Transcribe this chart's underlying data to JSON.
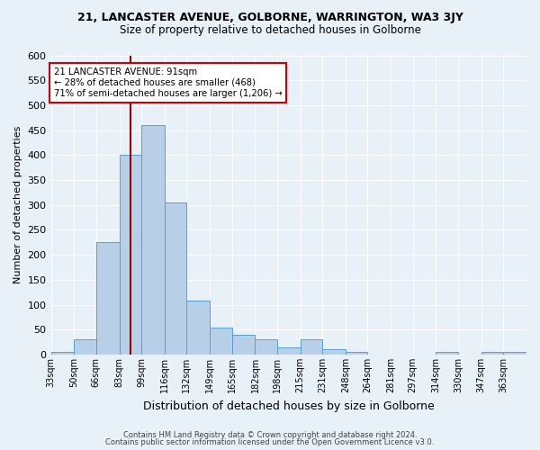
{
  "title1": "21, LANCASTER AVENUE, GOLBORNE, WARRINGTON, WA3 3JY",
  "title2": "Size of property relative to detached houses in Golborne",
  "xlabel": "Distribution of detached houses by size in Golborne",
  "ylabel": "Number of detached properties",
  "footer1": "Contains HM Land Registry data © Crown copyright and database right 2024.",
  "footer2": "Contains public sector information licensed under the Open Government Licence v3.0.",
  "bin_labels": [
    "33sqm",
    "50sqm",
    "66sqm",
    "83sqm",
    "99sqm",
    "116sqm",
    "132sqm",
    "149sqm",
    "165sqm",
    "182sqm",
    "198sqm",
    "215sqm",
    "231sqm",
    "248sqm",
    "264sqm",
    "281sqm",
    "297sqm",
    "314sqm",
    "330sqm",
    "347sqm",
    "363sqm"
  ],
  "bar_heights": [
    5,
    30,
    225,
    400,
    460,
    305,
    108,
    55,
    40,
    30,
    14,
    30,
    10,
    5,
    0,
    0,
    0,
    5,
    0,
    5,
    5
  ],
  "bar_color": "#b8cfe8",
  "bar_edge_color": "#5a9fd4",
  "property_line_x": 91,
  "bin_edges": [
    33,
    50,
    66,
    83,
    99,
    116,
    132,
    149,
    165,
    182,
    198,
    215,
    231,
    248,
    264,
    281,
    297,
    314,
    330,
    347,
    363,
    380
  ],
  "annotation_line1": "21 LANCASTER AVENUE: 91sqm",
  "annotation_line2": "← 28% of detached houses are smaller (468)",
  "annotation_line3": "71% of semi-detached houses are larger (1,206) →",
  "annotation_box_color": "#ffffff",
  "annotation_border_color": "#cc0000",
  "vline_color": "#990000",
  "ylim": [
    0,
    600
  ],
  "yticks": [
    0,
    50,
    100,
    150,
    200,
    250,
    300,
    350,
    400,
    450,
    500,
    550,
    600
  ],
  "bg_color": "#e8f0f8",
  "grid_color": "#ffffff",
  "figsize": [
    6.0,
    5.0
  ],
  "dpi": 100
}
